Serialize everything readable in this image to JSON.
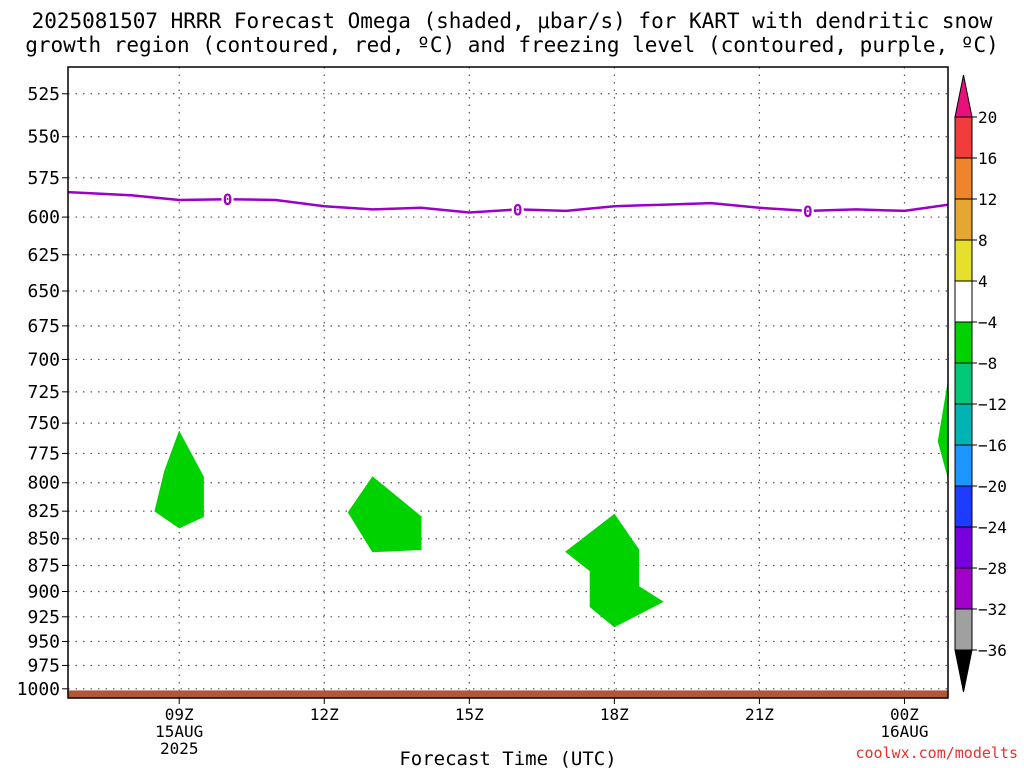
{
  "title_line1": "2025081507 HRRR Forecast Omega (shaded, μbar/s) for KART with dendritic snow",
  "title_line2": "growth region (contoured, red, ºC) and freezing level (contoured, purple, ºC)",
  "credit": "coolwx.com/modelts",
  "chart_data": {
    "type": "contour",
    "xlabel": "Forecast Time (UTC)",
    "ylabel": "",
    "x_range_hours_utc": [
      6.7,
      24.9
    ],
    "x_ticks": [
      {
        "hour": 9,
        "lines": [
          "09Z",
          "15AUG",
          "2025"
        ]
      },
      {
        "hour": 12,
        "lines": [
          "12Z"
        ]
      },
      {
        "hour": 15,
        "lines": [
          "15Z"
        ]
      },
      {
        "hour": 18,
        "lines": [
          "18Z"
        ]
      },
      {
        "hour": 21,
        "lines": [
          "21Z"
        ]
      },
      {
        "hour": 24,
        "lines": [
          "00Z",
          "16AUG"
        ]
      }
    ],
    "y_scale": "log-pressure (reversed)",
    "y_range_mb": [
      510,
      1010
    ],
    "y_ticks": [
      525,
      550,
      575,
      600,
      625,
      650,
      675,
      700,
      725,
      750,
      775,
      800,
      825,
      850,
      875,
      900,
      925,
      950,
      975,
      1000
    ],
    "grid": true,
    "freezing_level": {
      "color": "#9c00c8",
      "label": "0",
      "label_hours": [
        10,
        16,
        22
      ],
      "points": [
        [
          6.7,
          584
        ],
        [
          8,
          586
        ],
        [
          9,
          589
        ],
        [
          10,
          588.5
        ],
        [
          11,
          589
        ],
        [
          12,
          593
        ],
        [
          13,
          595
        ],
        [
          14,
          594
        ],
        [
          15,
          597
        ],
        [
          16,
          595
        ],
        [
          17,
          596
        ],
        [
          18,
          593
        ],
        [
          19,
          592
        ],
        [
          20,
          591
        ],
        [
          21,
          594
        ],
        [
          22,
          596
        ],
        [
          23,
          595
        ],
        [
          24,
          596
        ],
        [
          24.9,
          592
        ]
      ]
    },
    "omega_regions": [
      {
        "level": "-8 to -4",
        "color": "#00d200",
        "points": [
          [
            9,
            757
          ],
          [
            9.5,
            795
          ],
          [
            9.5,
            830
          ],
          [
            9,
            840
          ],
          [
            8.5,
            825
          ],
          [
            8.7,
            790
          ]
        ]
      },
      {
        "level": "-8 to -4",
        "color": "#00d200",
        "points": [
          [
            13,
            795
          ],
          [
            14,
            830
          ],
          [
            14,
            860
          ],
          [
            13,
            862
          ],
          [
            12.5,
            826
          ]
        ]
      },
      {
        "level": "-8 to -4",
        "color": "#00d200",
        "points": [
          [
            18,
            828
          ],
          [
            18.5,
            860
          ],
          [
            18.5,
            895
          ],
          [
            19,
            910
          ],
          [
            18,
            935
          ],
          [
            17.5,
            915
          ],
          [
            17.5,
            880
          ],
          [
            17,
            862
          ]
        ]
      },
      {
        "level": "-8 to -4",
        "color": "#00d200",
        "points": [
          [
            24.9,
            718
          ],
          [
            24.7,
            765
          ],
          [
            24.9,
            795
          ]
        ]
      }
    ],
    "surface": {
      "color": "#b0573a",
      "level_mb": 1005
    },
    "colorbar": {
      "arrow_top_color": "#e8107a",
      "arrow_bottom_color": "#000000",
      "bands": [
        {
          "label": "20",
          "color": "#f03c3c"
        },
        {
          "label": "16",
          "color": "#f0842c"
        },
        {
          "label": "12",
          "color": "#e4a832"
        },
        {
          "label": "8",
          "color": "#e6e02c"
        },
        {
          "label": "4",
          "color": "#ffffff"
        },
        {
          "label": "−4",
          "color": "#00d200"
        },
        {
          "label": "−8",
          "color": "#00c878"
        },
        {
          "label": "−12",
          "color": "#00b4b4"
        },
        {
          "label": "−16",
          "color": "#1e96ff"
        },
        {
          "label": "−20",
          "color": "#1e3cff"
        },
        {
          "label": "−24",
          "color": "#7800dc"
        },
        {
          "label": "−28",
          "color": "#a000c8"
        },
        {
          "label": "−32",
          "color": "#a0a0a0"
        },
        {
          "label": "−36",
          "color": null
        }
      ]
    }
  }
}
